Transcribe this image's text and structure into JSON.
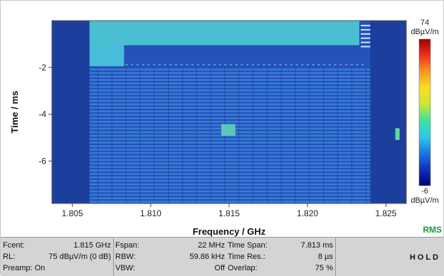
{
  "chart_data": {
    "type": "heatmap",
    "xlabel": "Frequency / GHz",
    "ylabel": "Time / ms",
    "x_ticks": [
      "1.805",
      "1.810",
      "1.815",
      "1.820",
      "1.825"
    ],
    "x_tick_values": [
      1.805,
      1.81,
      1.815,
      1.82,
      1.825
    ],
    "y_ticks": [
      "-2",
      "-4",
      "-6"
    ],
    "y_tick_values": [
      -2,
      -4,
      -6
    ],
    "xlim": [
      1.8037,
      1.8263
    ],
    "ylim": [
      -7.813,
      0
    ],
    "colorbar": {
      "max_value": "74",
      "max_unit": "dBµV/m",
      "min_value": "-6",
      "min_unit": "dBµV/m",
      "colors": [
        "#00007a",
        "#1030c0",
        "#1e78e0",
        "#2ec8e8",
        "#40e0a0",
        "#c8e830",
        "#f8e020",
        "#f89820",
        "#f03020",
        "#a00000"
      ]
    },
    "detector": "RMS"
  },
  "infobar": {
    "col1": [
      {
        "label": "Fcent:",
        "value": "1.815 GHz"
      },
      {
        "label": "RL:",
        "value": "75 dBµV/m (0 dB)"
      },
      {
        "label": "Preamp: On",
        "value": ""
      }
    ],
    "col2": [
      {
        "label": "Fspan:",
        "value": "22 MHz"
      },
      {
        "label": "RBW:",
        "value": "59.86 kHz"
      },
      {
        "label": "VBW:",
        "value": "Off"
      }
    ],
    "col3": [
      {
        "label": "Time Span:",
        "value": "7.813 ms"
      },
      {
        "label": "Time Res.:",
        "value": "8 µs"
      },
      {
        "label": "Overlap:",
        "value": "75 %"
      }
    ],
    "status": "HOLD"
  }
}
